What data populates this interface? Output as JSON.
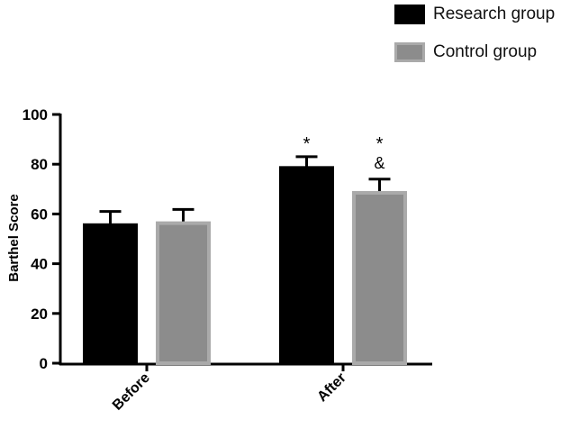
{
  "chart_data": {
    "type": "bar",
    "title": "",
    "xlabel": "",
    "ylabel": "Barthel Score",
    "ylim": [
      0,
      100
    ],
    "yticks": [
      0,
      20,
      40,
      60,
      80,
      100
    ],
    "categories": [
      "Before",
      "After"
    ],
    "series": [
      {
        "name": "Research group",
        "color": "#000000",
        "values": [
          55.5,
          78.5
        ],
        "errors": [
          5.5,
          4.5
        ],
        "annotations": [
          "",
          "*"
        ]
      },
      {
        "name": "Control group",
        "color": "#8c8c8c",
        "values": [
          56.3,
          68.5
        ],
        "errors": [
          5.5,
          5.5
        ],
        "annotations": [
          "",
          "*\n&"
        ]
      }
    ],
    "grid": false,
    "legend_position": "top-right"
  }
}
